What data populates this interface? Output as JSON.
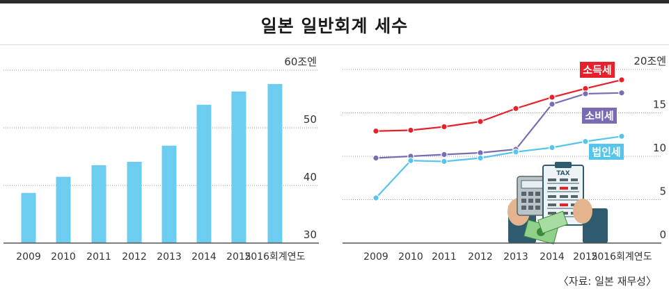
{
  "title": "일본 일반회계 세수",
  "source": "〈자료: 일본 재무성〉",
  "chart_data": [
    {
      "type": "bar",
      "categories": [
        "2009",
        "2010",
        "2011",
        "2012",
        "2013",
        "2014",
        "2015",
        "2016회계연도"
      ],
      "values": [
        38.7,
        41.5,
        43.5,
        44.1,
        46.9,
        54.0,
        56.3,
        57.6
      ],
      "ylim": [
        30,
        60
      ],
      "yticks": [
        30,
        40,
        50,
        60
      ],
      "ytick_labels": [
        "30",
        "40",
        "50",
        "60조엔"
      ],
      "bar_color": "#6ccdf1",
      "grid": "dotted horizontal"
    },
    {
      "type": "line",
      "x": [
        "2009",
        "2010",
        "2011",
        "2012",
        "2013",
        "2014",
        "2015",
        "2016회계연도"
      ],
      "ylim": [
        0,
        20
      ],
      "yticks": [
        0,
        5,
        10,
        15,
        20
      ],
      "ytick_labels": [
        "0",
        "5",
        "10",
        "15",
        "20조엔"
      ],
      "series": [
        {
          "name": "소득세",
          "values": [
            12.9,
            13.0,
            13.4,
            14.0,
            15.5,
            16.8,
            17.8,
            18.8
          ],
          "color": "#e8202a"
        },
        {
          "name": "소비세",
          "values": [
            9.8,
            10.0,
            10.2,
            10.4,
            10.8,
            16.0,
            17.2,
            17.3
          ],
          "color": "#7b6bb3"
        },
        {
          "name": "법인세",
          "values": [
            5.2,
            9.5,
            9.4,
            9.8,
            10.5,
            11.0,
            11.7,
            12.3
          ],
          "color": "#55c5ec"
        }
      ],
      "grid": "dotted horizontal"
    }
  ]
}
